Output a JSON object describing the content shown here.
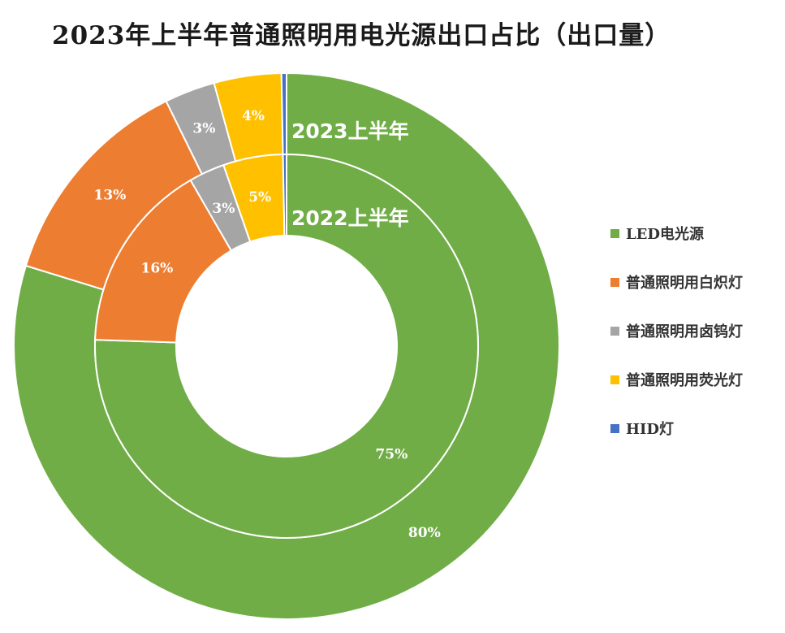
{
  "title": "2023年上半年普通照明用电光源出口占比（出口量）",
  "chart_data": {
    "type": "donut",
    "title": "2023年上半年普通照明用电光源出口占比（出口量）",
    "categories": [
      "LED电光源",
      "普通照明用白炽灯",
      "普通照明用卤钨灯",
      "普通照明用荧光灯",
      "HID灯"
    ],
    "colors": [
      "#70AD47",
      "#ED7D31",
      "#A5A5A5",
      "#FFC000",
      "#4472C4"
    ],
    "series": [
      {
        "name": "2023上半年",
        "ring": "outer",
        "values": [
          80,
          13,
          3,
          4,
          0.3
        ],
        "labels": [
          "80%",
          "13%",
          "3%",
          "4%",
          ""
        ]
      },
      {
        "name": "2022上半年",
        "ring": "inner",
        "values": [
          75,
          16,
          3,
          5,
          0.3
        ],
        "labels": [
          "75%",
          "16%",
          "3%",
          "5%",
          ""
        ]
      }
    ],
    "legend_position": "right"
  }
}
